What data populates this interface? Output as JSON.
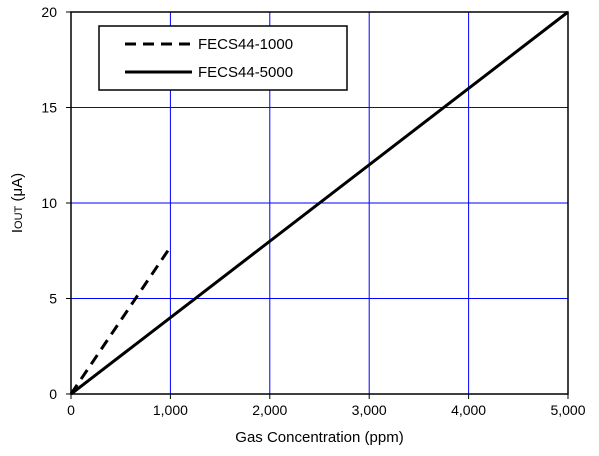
{
  "chart_data": {
    "type": "line",
    "title": "",
    "xlabel": "Gas Concentration (ppm)",
    "ylabel": "IOUT (μA)",
    "ylabel_main": "I",
    "ylabel_sub": "OUT",
    "ylabel_unit": " (μA)",
    "xlim": [
      0,
      5000
    ],
    "ylim": [
      0,
      20
    ],
    "x_ticks": [
      0,
      1000,
      2000,
      3000,
      4000,
      5000
    ],
    "x_tick_labels": [
      "0",
      "1,000",
      "2,000",
      "3,000",
      "4,000",
      "5,000"
    ],
    "y_ticks": [
      0,
      5,
      10,
      15,
      20
    ],
    "y_tick_labels": [
      "0",
      "5",
      "10",
      "15",
      "20"
    ],
    "grid": true,
    "grid_color": "#0000ff",
    "legend_position": "top-left",
    "series": [
      {
        "name": "FECS44-1000",
        "style": "dashed",
        "color": "#000000",
        "x": [
          0,
          1000
        ],
        "y": [
          0,
          7.7
        ]
      },
      {
        "name": "FECS44-5000",
        "style": "solid",
        "color": "#000000",
        "x": [
          0,
          5000
        ],
        "y": [
          0,
          20
        ]
      }
    ]
  }
}
